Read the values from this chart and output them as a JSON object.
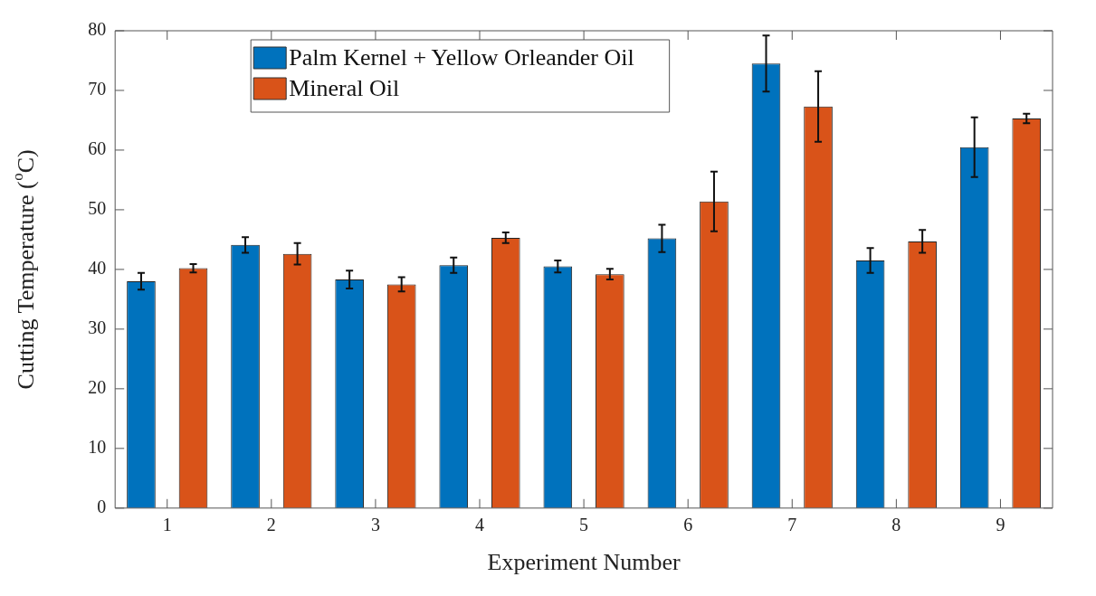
{
  "chart_data": {
    "type": "bar",
    "xlabel": "Experiment Number",
    "ylabel": "Cutting Temperature ($^{o}$C)",
    "categories": [
      "1",
      "2",
      "3",
      "4",
      "5",
      "6",
      "7",
      "8",
      "9"
    ],
    "series": [
      {
        "name": "Palm Kernel + Yellow Orleander Oil",
        "color": "#0072bd",
        "values": [
          38.0,
          44.1,
          38.3,
          40.7,
          40.5,
          45.2,
          74.5,
          41.5,
          60.5
        ],
        "errors": [
          1.4,
          1.3,
          1.5,
          1.3,
          1.0,
          2.3,
          4.7,
          2.1,
          5.0
        ]
      },
      {
        "name": "Mineral Oil",
        "color": "#d95319",
        "values": [
          40.2,
          42.6,
          37.5,
          45.3,
          39.2,
          51.4,
          67.3,
          44.7,
          65.3
        ],
        "errors": [
          0.7,
          1.8,
          1.2,
          0.9,
          0.9,
          5.0,
          5.9,
          1.9,
          0.8
        ]
      }
    ],
    "ylim": [
      0,
      80
    ],
    "yticks": [
      0,
      10,
      20,
      30,
      40,
      50,
      60,
      70,
      80
    ],
    "grid": false,
    "legend": "top left"
  }
}
